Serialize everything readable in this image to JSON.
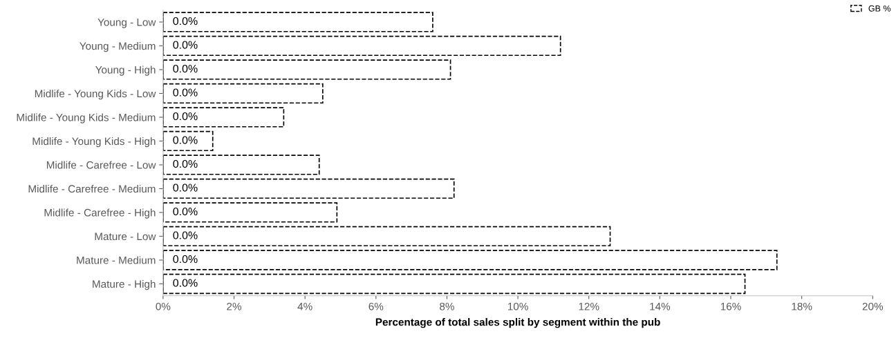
{
  "chart_data": {
    "type": "bar",
    "orientation": "horizontal",
    "xlabel": "Percentage of total sales split by segment within the pub",
    "categories": [
      "Young - Low",
      "Young - Medium",
      "Young - High",
      "Midlife - Young Kids - Low",
      "Midlife - Young Kids - Medium",
      "Midlife - Young Kids - High",
      "Midlife - Carefree - Low",
      "Midlife - Carefree - Medium",
      "Midlife - Carefree - High",
      "Mature - Low",
      "Mature - Medium",
      "Mature - High"
    ],
    "series": [
      {
        "name": "GB %",
        "color": "#ffffff",
        "line_style": "dashed",
        "values": [
          7.6,
          11.2,
          8.1,
          4.5,
          3.4,
          1.4,
          4.4,
          8.2,
          4.9,
          12.6,
          17.3,
          16.4
        ]
      },
      {
        "color": "#ffffff",
        "values": [
          0,
          0,
          0,
          0,
          0,
          0,
          0,
          0,
          0,
          0,
          0,
          0
        ],
        "value_labels": [
          "0.0%",
          "0.0%",
          "0.0%",
          "0.0%",
          "0.0%",
          "0.0%",
          "0.0%",
          "0.0%",
          "0.0%",
          "0.0%",
          "0.0%",
          "0.0%"
        ]
      }
    ],
    "xlim": [
      0,
      20
    ],
    "xticks": [
      {
        "value": 0,
        "label": "0%"
      },
      {
        "value": 2,
        "label": "2%"
      },
      {
        "value": 4,
        "label": "4%"
      },
      {
        "value": 6,
        "label": "6%"
      },
      {
        "value": 8,
        "label": "8%"
      },
      {
        "value": 10,
        "label": "10%"
      },
      {
        "value": 12,
        "label": "12%"
      },
      {
        "value": 14,
        "label": "14%"
      },
      {
        "value": 16,
        "label": "16%"
      },
      {
        "value": 18,
        "label": "18%"
      },
      {
        "value": 20,
        "label": "20%"
      }
    ],
    "legend": "top right"
  }
}
